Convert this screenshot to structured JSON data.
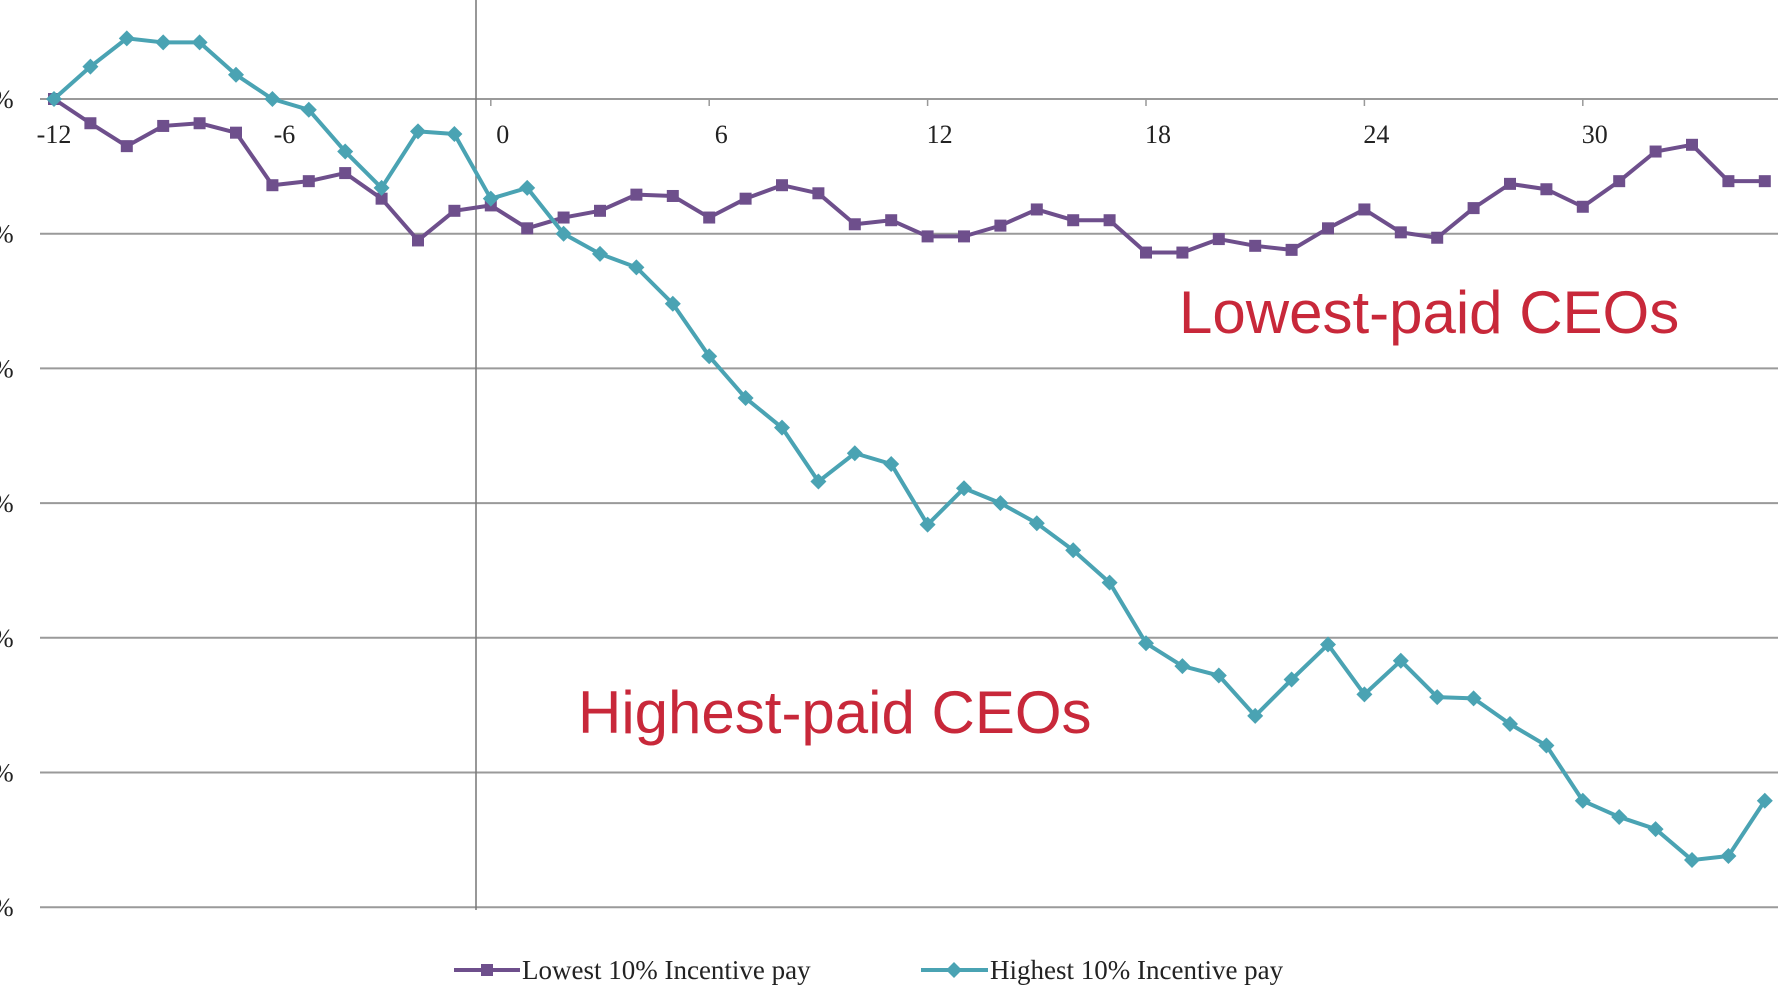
{
  "chart_data": {
    "type": "line",
    "title": "",
    "xlabel": "",
    "ylabel": "",
    "x": [
      -12,
      -11,
      -10,
      -9,
      -8,
      -7,
      -6,
      -5,
      -4,
      -3,
      -2,
      -1,
      0,
      1,
      2,
      3,
      4,
      5,
      6,
      7,
      8,
      9,
      10,
      11,
      12,
      13,
      14,
      15,
      16,
      17,
      18,
      19,
      20,
      21,
      22,
      23,
      24,
      25,
      26,
      27,
      28,
      29,
      30,
      31,
      32,
      33,
      34,
      35
    ],
    "xticks": [
      "-12",
      "-6",
      "0",
      "6",
      "12",
      "18",
      "24",
      "30"
    ],
    "xtick_values": [
      -12,
      -6,
      0,
      6,
      12,
      18,
      24,
      30
    ],
    "xlim": [
      -12.4,
      35.4
    ],
    "ytick_labels_visible": [
      "%",
      "%",
      "%",
      "%",
      "%",
      "%",
      "%"
    ],
    "ytick_values_gridline_units": [
      0,
      -1,
      -2,
      -3,
      -4,
      -5,
      -6
    ],
    "ylim": [
      -6,
      0.73
    ],
    "grid": "horizontal",
    "legend_position": "bottom",
    "series": [
      {
        "name": "Lowest 10% Incentive pay",
        "color": "#6e4f8c",
        "marker": "square",
        "values": [
          0,
          -0.18,
          -0.35,
          -0.2,
          -0.18,
          -0.25,
          -0.64,
          -0.61,
          -0.55,
          -0.74,
          -1.05,
          -0.83,
          -0.79,
          -0.96,
          -0.88,
          -0.83,
          -0.71,
          -0.72,
          -0.88,
          -0.74,
          -0.64,
          -0.7,
          -0.93,
          -0.9,
          -1.02,
          -1.02,
          -0.94,
          -0.82,
          -0.9,
          -0.9,
          -1.14,
          -1.14,
          -1.04,
          -1.09,
          -1.12,
          -0.96,
          -0.82,
          -0.99,
          -1.03,
          -0.81,
          -0.63,
          -0.67,
          -0.8,
          -0.61,
          -0.39,
          -0.34,
          -0.61,
          -0.61
        ]
      },
      {
        "name": "Highest 10% Incentive pay",
        "color": "#4aa3b3",
        "marker": "diamond",
        "values": [
          0,
          0.24,
          0.45,
          0.42,
          0.42,
          0.18,
          0,
          -0.08,
          -0.39,
          -0.66,
          -0.24,
          -0.26,
          -0.74,
          -0.66,
          -1.0,
          -1.15,
          -1.25,
          -1.52,
          -1.91,
          -2.22,
          -2.44,
          -2.84,
          -2.63,
          -2.71,
          -3.16,
          -2.89,
          -3.0,
          -3.15,
          -3.35,
          -3.59,
          -4.04,
          -4.21,
          -4.28,
          -4.58,
          -4.31,
          -4.05,
          -4.42,
          -4.17,
          -4.44,
          -4.45,
          -4.64,
          -4.8,
          -5.21,
          -5.33,
          -5.42,
          -5.65,
          -5.62,
          -5.21
        ]
      }
    ],
    "annotations": [
      {
        "text": "Lowest-paid CEOs",
        "color": "#c8283a"
      },
      {
        "text": "Highest-paid CEOs",
        "color": "#c8283a"
      }
    ]
  }
}
